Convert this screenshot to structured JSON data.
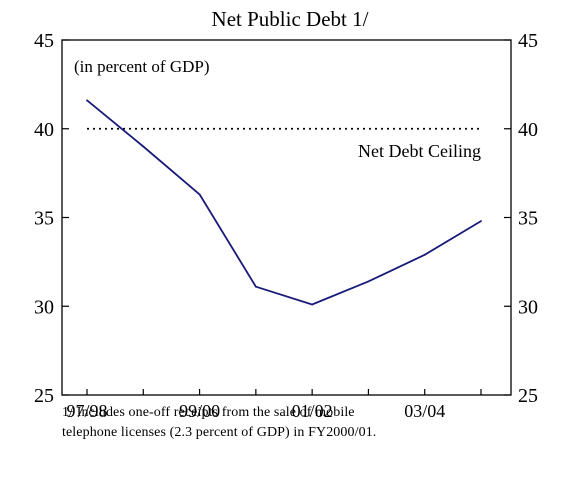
{
  "chart_data": {
    "type": "line",
    "title": "Net Public Debt 1/",
    "subtitle": "(in percent of GDP)",
    "ylim": [
      25,
      45
    ],
    "yticks": [
      25,
      30,
      35,
      40,
      45
    ],
    "x_tick_labels": [
      "97/98",
      "99/00",
      "01/02",
      "03/04"
    ],
    "x": [
      "97/98",
      "98/99",
      "99/00",
      "00/01",
      "01/02",
      "02/03",
      "03/04",
      "04/05"
    ],
    "series": [
      {
        "values": [
          41.6,
          39.0,
          36.3,
          31.1,
          30.1,
          31.4,
          32.9,
          34.8
        ],
        "color": "#1a1a7a"
      }
    ],
    "reference_line": {
      "label": "Net Debt Ceiling",
      "value": 40,
      "style": "dotted"
    },
    "grid": false,
    "mirrored_right_axis": true
  },
  "footnote": {
    "line1": "1/ Includes one-off receipts from the sale of mobile",
    "line2": "telephone licenses (2.3 percent of GDP) in FY2000/01."
  }
}
